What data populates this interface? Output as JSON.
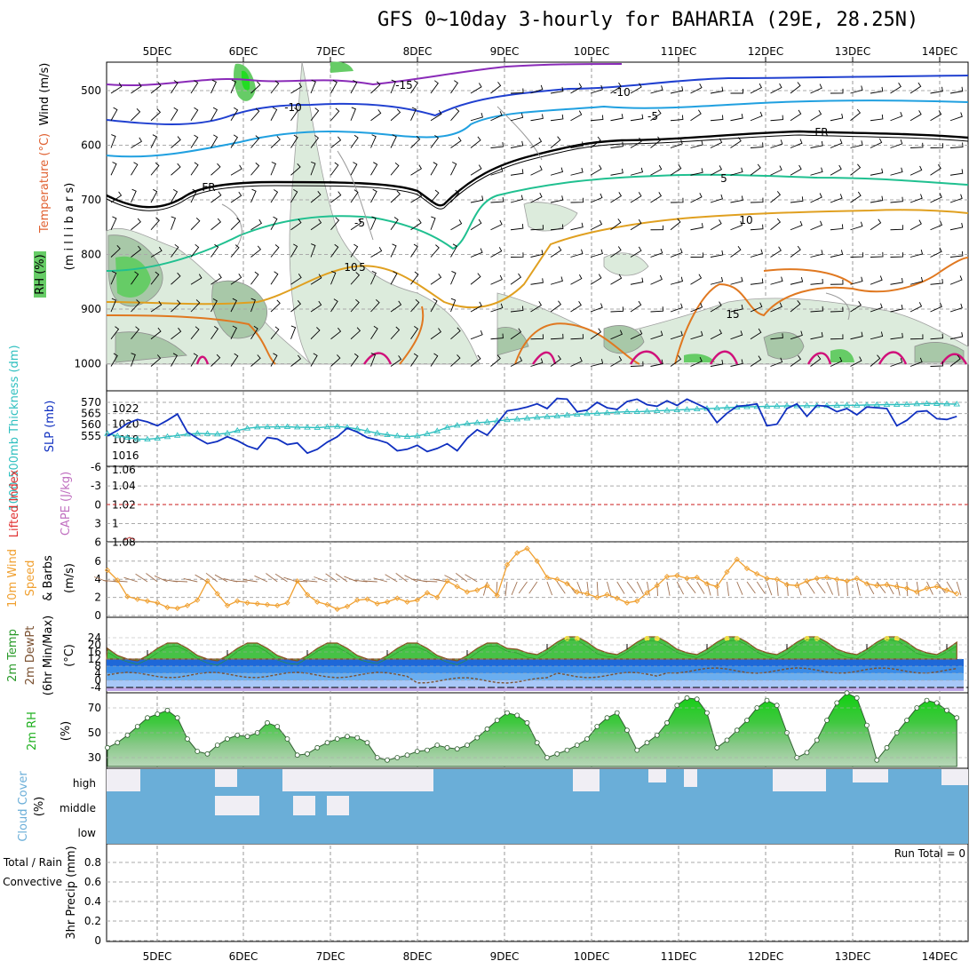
{
  "title": "GFS 0~10day 3-hourly for BAHARIA (29E, 28.25N)",
  "dates": [
    "5DEC",
    "6DEC",
    "7DEC",
    "8DEC",
    "9DEC",
    "10DEC",
    "11DEC",
    "12DEC",
    "13DEC",
    "14DEC"
  ],
  "colors": {
    "wind_barb": "#000000",
    "rh_band": "#90c890",
    "temp_purple": "#8a2bb8",
    "temp_blue": "#2040d0",
    "temp_cyan": "#20a0e0",
    "temp_black": "#000000",
    "temp_teal": "#20c090",
    "temp_gold": "#e0a020",
    "temp_orange": "#e07820",
    "temp_magenta": "#d0107a",
    "slp": "#1030c0",
    "thickness": "#30c0c0",
    "wind_speed": "#f0a030",
    "barb10m": "#a07050",
    "temp2m": "#40c040",
    "rh2m": "#20c020",
    "cloud": "#6aaed8"
  },
  "panels": {
    "profile": {
      "labels": {
        "rh": "RH (%)",
        "temp": "Temperature (°C)",
        "wind": "Wind (m/s)",
        "units": "(m i l l i b a r s)"
      },
      "yticks": [
        "500",
        "600",
        "700",
        "800",
        "900",
        "1000"
      ],
      "contour_labels": [
        "-15",
        "-10",
        "-10",
        "-5",
        "FR",
        "FR",
        "-5",
        "5",
        "5",
        "10",
        "10",
        "15"
      ]
    },
    "slp": {
      "labels": {
        "thick": "1000-500mb Thickness (dm)",
        "slp": "SLP (mb)"
      },
      "left_ticks": [
        "570",
        "565",
        "560",
        "555"
      ],
      "right_ticks": [
        "1022",
        "1020",
        "1018",
        "1016"
      ]
    },
    "cape": {
      "labels": {
        "li": "Lifted Index",
        "cape": "CAPE (J/kg)"
      },
      "left_ticks": [
        "-6",
        "-3",
        "0",
        "3",
        "6"
      ],
      "right_ticks": [
        "1.06",
        "1.04",
        "1.02",
        "1",
        "1.08"
      ]
    },
    "wind10": {
      "labels": {
        "a": "10m Wind",
        "b": "Speed",
        "c": "& Barbs",
        "units": "(m/s)"
      },
      "yticks": [
        "6",
        "4",
        "2",
        "0"
      ]
    },
    "temp2m": {
      "labels": {
        "a": "2m Temp",
        "b": "2m DewPt",
        "c": "(6hr Min/Max)",
        "units": "(°C)"
      },
      "yticks": [
        "24",
        "20",
        "16",
        "12",
        "8",
        "4",
        "0",
        "-4"
      ]
    },
    "rh2m": {
      "labels": {
        "a": "2m RH",
        "units": "(%)"
      },
      "yticks": [
        "70",
        "50",
        "30"
      ]
    },
    "cloud": {
      "labels": {
        "a": "Cloud Cover",
        "units": "(%)"
      },
      "levels": [
        "high",
        "middle",
        "low"
      ]
    },
    "precip": {
      "labels": {
        "a": "Total / Rain",
        "b": "Convective",
        "c": "3hr Precip (mm)"
      },
      "yticks": [
        "0.8",
        "0.6",
        "0.4",
        "0.2",
        "0"
      ],
      "run_total": "Run Total = 0"
    }
  },
  "chart_data": {
    "type": "line",
    "title": "GFS 0~10day 3-hourly for BAHARIA (29E, 28.25N)",
    "x_start": "4DEC 12Z",
    "x_step_hours": 3,
    "series": [
      {
        "name": "SLP (mb)",
        "values": [
          1018.5,
          1019.2,
          1020.1,
          1020.6,
          1020.3,
          1019.8,
          1020.5,
          1021.3,
          1019.0,
          1018.2,
          1017.5,
          1017.8,
          1018.4,
          1017.9,
          1017.2,
          1016.8,
          1018.3,
          1018.1,
          1017.4,
          1017.6,
          1016.3,
          1016.8,
          1017.7,
          1018.4,
          1019.5,
          1019.0,
          1018.3,
          1018.0,
          1017.6,
          1016.6,
          1016.8,
          1017.3,
          1016.5,
          1016.9,
          1017.5,
          1016.6,
          1018.2,
          1019.3,
          1018.6,
          1020.1,
          1021.7,
          1021.9,
          1022.2,
          1022.6,
          1022.0,
          1023.3,
          1023.2,
          1021.6,
          1021.8,
          1022.8,
          1022.1,
          1021.9,
          1022.9,
          1023.2,
          1022.5,
          1022.3,
          1023.0,
          1022.4,
          1023.2,
          1022.6,
          1022.0,
          1020.2,
          1021.4,
          1022.3,
          1022.4,
          1022.6,
          1019.8,
          1020.0,
          1022.0,
          1022.6,
          1021.0,
          1022.4,
          1022.3,
          1021.6,
          1022.0,
          1021.2,
          1022.2,
          1022.1,
          1022.0,
          1019.8,
          1020.5,
          1021.6,
          1021.7,
          1020.7,
          1020.6,
          1021.0
        ]
      },
      {
        "name": "1000-500mb Thickness (dm)",
        "values": [
          556.0,
          555.0,
          554.3,
          553.6,
          553.5,
          553.9,
          554.6,
          555.2,
          555.8,
          556.1,
          556.0,
          555.8,
          556.2,
          557.4,
          558.4,
          558.9,
          559.0,
          559.0,
          559.1,
          558.9,
          558.8,
          558.7,
          559.0,
          559.2,
          558.8,
          558.1,
          557.2,
          556.2,
          555.5,
          555.0,
          554.7,
          555.0,
          555.9,
          557.2,
          558.8,
          559.7,
          560.5,
          560.9,
          561.2,
          561.7,
          562.2,
          562.5,
          562.9,
          563.3,
          563.6,
          563.9,
          564.3,
          564.6,
          564.9,
          565.1,
          565.3,
          565.6,
          565.8,
          565.8,
          566.0,
          566.2,
          566.4,
          566.6,
          566.8,
          567.0,
          567.2,
          567.4,
          567.6,
          567.8,
          568.0,
          568.1,
          568.2,
          568.3,
          568.4,
          568.4,
          568.5,
          568.5,
          568.5,
          568.6,
          568.7,
          568.7,
          568.8,
          568.9,
          569.0,
          569.0,
          569.1,
          569.3,
          569.4,
          569.4,
          569.3,
          569.2
        ]
      },
      {
        "name": "10m Wind Speed (m/s)",
        "values": [
          5.0,
          3.9,
          2.1,
          1.8,
          1.6,
          1.4,
          0.9,
          0.8,
          1.1,
          1.7,
          3.8,
          2.4,
          1.1,
          1.6,
          1.4,
          1.3,
          1.2,
          1.1,
          1.4,
          3.8,
          2.3,
          1.5,
          1.2,
          0.7,
          1.0,
          1.7,
          1.8,
          1.3,
          1.5,
          1.9,
          1.5,
          1.7,
          2.5,
          2.0,
          3.8,
          3.2,
          2.6,
          2.8,
          3.3,
          2.2,
          5.6,
          6.9,
          7.4,
          6.0,
          4.2,
          4.0,
          3.5,
          2.6,
          2.4,
          2.0,
          2.3,
          1.9,
          1.4,
          1.6,
          2.5,
          3.3,
          4.3,
          4.4,
          4.1,
          4.2,
          3.5,
          3.2,
          4.8,
          6.2,
          5.2,
          4.6,
          4.1,
          4.0,
          3.4,
          3.3,
          3.8,
          4.1,
          4.2,
          4.0,
          3.8,
          4.1,
          3.5,
          3.3,
          3.4,
          3.2,
          3.0,
          2.6,
          3.0,
          3.2,
          2.8,
          2.4
        ]
      },
      {
        "name": "2m RH (%)",
        "values": [
          38,
          42,
          48,
          55,
          62,
          65,
          68,
          62,
          45,
          35,
          33,
          40,
          45,
          48,
          47,
          50,
          58,
          55,
          45,
          32,
          33,
          38,
          42,
          45,
          47,
          46,
          42,
          30,
          28,
          30,
          32,
          35,
          36,
          40,
          38,
          37,
          40,
          46,
          53,
          60,
          66,
          64,
          58,
          42,
          30,
          33,
          36,
          40,
          45,
          55,
          62,
          66,
          52,
          36,
          42,
          48,
          58,
          72,
          78,
          77,
          66,
          38,
          44,
          52,
          60,
          70,
          76,
          72,
          50,
          30,
          34,
          44,
          60,
          74,
          82,
          78,
          56,
          28,
          38,
          50,
          60,
          70,
          76,
          74,
          68,
          62
        ]
      }
    ],
    "xlabel": "",
    "ylabel": ""
  }
}
